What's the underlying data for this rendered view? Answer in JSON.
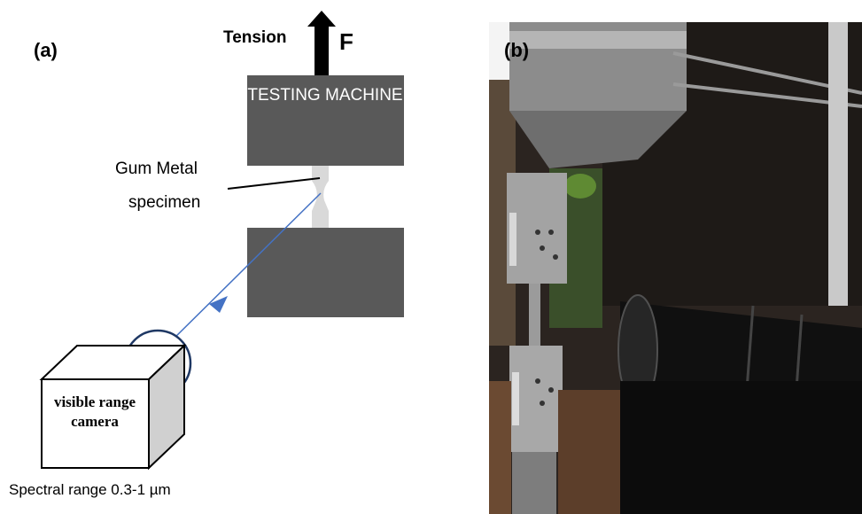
{
  "panel_a": {
    "label": "(a)",
    "tension_label": "Tension",
    "force_label": "F",
    "machine_label": "TESTING MACHINE",
    "specimen_label_line1": "Gum Metal",
    "specimen_label_line2": "specimen",
    "camera_label": "visible range camera",
    "spectral_label": "Spectral range 0.3-1 µm"
  },
  "panel_b": {
    "label": "(b)",
    "content": "photograph of tensile test setup with specimen in grips and camera lens"
  },
  "colors": {
    "machine_block": "#595959",
    "specimen": "#d9d9d9",
    "sight_line": "#4472c4",
    "camera_side": "#d0d0d0"
  }
}
